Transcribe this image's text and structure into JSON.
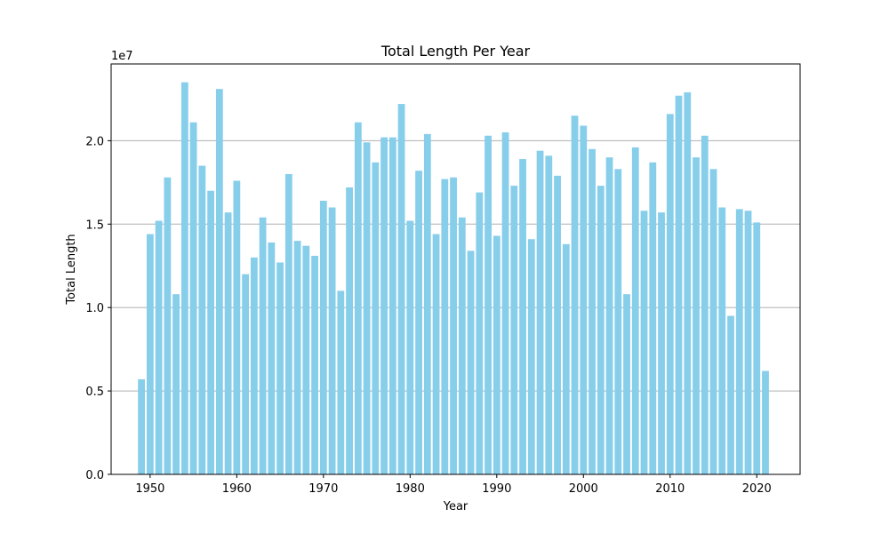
{
  "chart_data": {
    "type": "bar",
    "title": "Total Length Per Year",
    "xlabel": "Year",
    "ylabel": "Total Length",
    "y_offset_label": "1e7",
    "y_multiplier": 10000000,
    "bar_color": "#87ceeb",
    "grid": "horizontal",
    "xlim": [
      1945.5,
      2025
    ],
    "ylim": [
      0,
      2.46
    ],
    "xticks": [
      1950,
      1960,
      1970,
      1980,
      1990,
      2000,
      2010,
      2020
    ],
    "xtick_labels": [
      "1950",
      "1960",
      "1970",
      "1980",
      "1990",
      "2000",
      "2010",
      "2020"
    ],
    "yticks": [
      0,
      0.5,
      1.0,
      1.5,
      2.0
    ],
    "ytick_labels": [
      "0.0",
      "0.5",
      "1.0",
      "1.5",
      "2.0"
    ],
    "x": [
      1949,
      1950,
      1951,
      1952,
      1953,
      1954,
      1955,
      1956,
      1957,
      1958,
      1959,
      1960,
      1961,
      1962,
      1963,
      1964,
      1965,
      1966,
      1967,
      1968,
      1969,
      1970,
      1971,
      1972,
      1973,
      1974,
      1975,
      1976,
      1977,
      1978,
      1979,
      1980,
      1981,
      1982,
      1983,
      1984,
      1985,
      1986,
      1987,
      1988,
      1989,
      1990,
      1991,
      1992,
      1993,
      1994,
      1995,
      1996,
      1997,
      1998,
      1999,
      2000,
      2001,
      2002,
      2003,
      2004,
      2005,
      2006,
      2007,
      2008,
      2009,
      2010,
      2011,
      2012,
      2013,
      2014,
      2015,
      2016,
      2017,
      2018,
      2019,
      2020,
      2021
    ],
    "values": [
      0.57,
      1.44,
      1.52,
      1.78,
      1.08,
      2.35,
      2.11,
      1.85,
      1.7,
      2.31,
      1.57,
      1.76,
      1.2,
      1.3,
      1.54,
      1.39,
      1.27,
      1.8,
      1.4,
      1.37,
      1.31,
      1.64,
      1.6,
      1.1,
      1.72,
      2.11,
      1.99,
      1.87,
      2.02,
      2.02,
      2.22,
      1.52,
      1.82,
      2.04,
      1.44,
      1.77,
      1.78,
      1.54,
      1.34,
      1.69,
      2.03,
      1.43,
      2.05,
      1.73,
      1.89,
      1.41,
      1.94,
      1.91,
      1.79,
      1.38,
      2.15,
      2.09,
      1.95,
      1.73,
      1.9,
      1.83,
      1.08,
      1.96,
      1.58,
      1.87,
      1.57,
      2.16,
      2.27,
      2.29,
      1.9,
      2.03,
      1.83,
      1.6,
      0.95,
      1.59,
      1.58,
      1.51,
      0.62
    ]
  }
}
